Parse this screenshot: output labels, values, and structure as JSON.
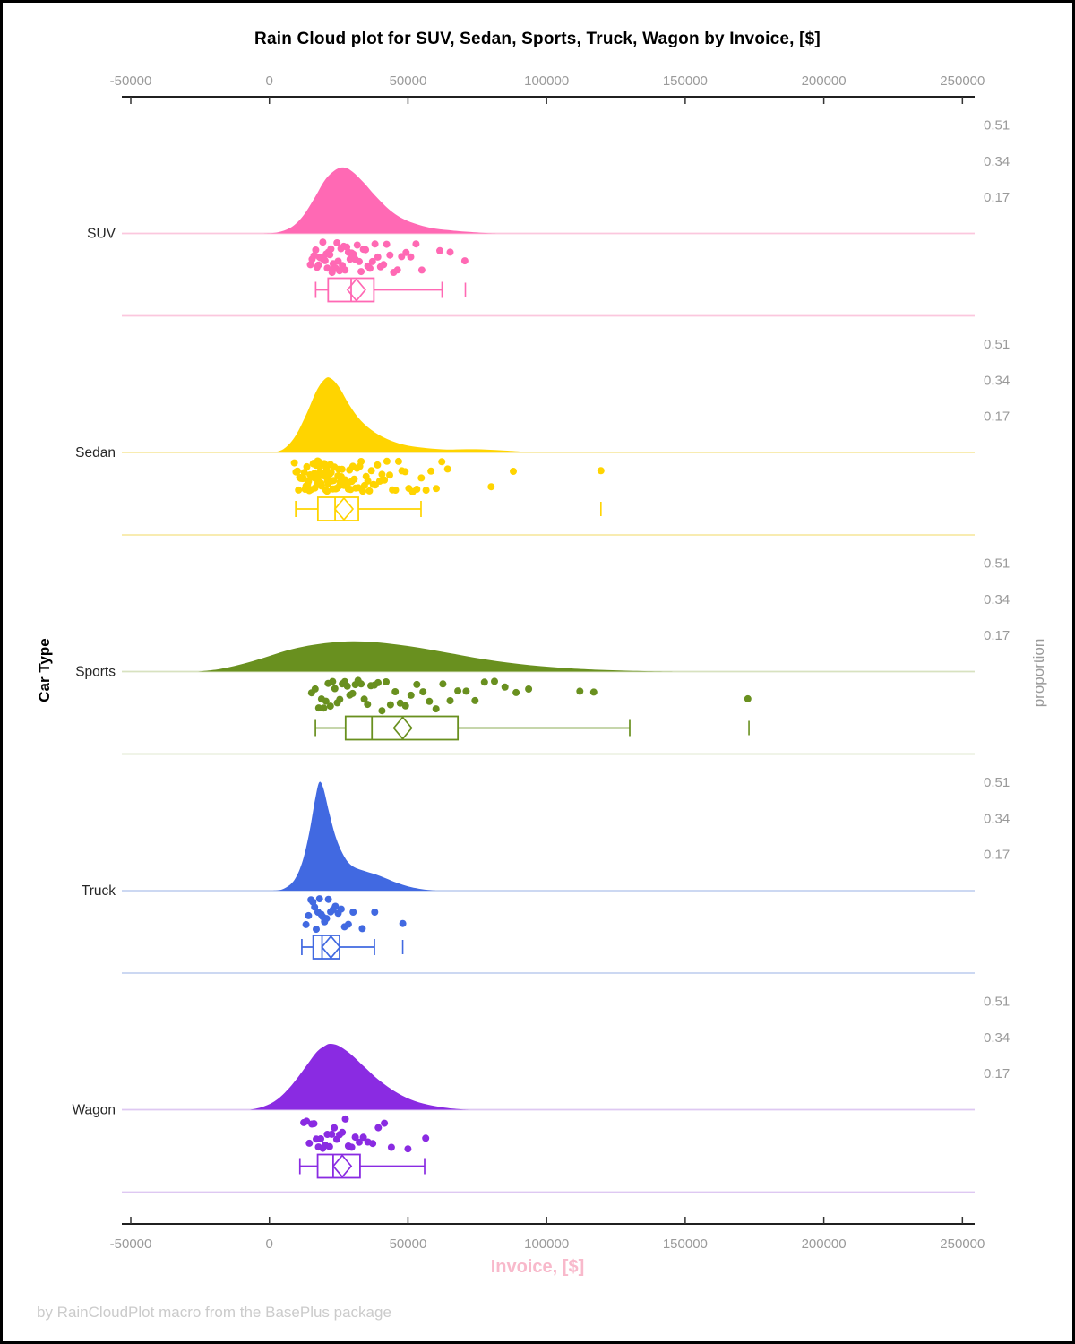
{
  "chart_data": {
    "type": "raincloud",
    "title": "Rain Cloud plot for SUV, Sedan, Sports, Truck, Wagon by Invoice, [$]",
    "xlabel": "Invoice, [$]",
    "xlabel_color": "#F8B9CB",
    "ylabel_left": "Car Type",
    "ylabel_right": "proportion",
    "footer": "by RainCloudPlot macro from the BasePlus package",
    "axis_color": "#000000",
    "tick_color": "#333333",
    "tick_label_color": "#9a9a9a",
    "category_label_color": "#262626",
    "x_range": [
      -50000,
      250000
    ],
    "x_ticks": [
      -50000,
      0,
      50000,
      100000,
      150000,
      200000,
      250000
    ],
    "x_tick_labels": [
      "-50000",
      "0",
      "50000",
      "100000",
      "150000",
      "200000",
      "250000"
    ],
    "proportion_ticks": [
      "0.51",
      "0.34",
      "0.17"
    ],
    "legend": "none",
    "grid": "off",
    "series": [
      {
        "name": "SUV",
        "color": "#FF69B4",
        "light": "#FBC7DE",
        "density": [
          [
            -2000,
            0
          ],
          [
            3000,
            0.005
          ],
          [
            8000,
            0.03
          ],
          [
            12000,
            0.08
          ],
          [
            16000,
            0.16
          ],
          [
            20000,
            0.25
          ],
          [
            24000,
            0.3
          ],
          [
            27000,
            0.31
          ],
          [
            30000,
            0.29
          ],
          [
            34000,
            0.24
          ],
          [
            38000,
            0.18
          ],
          [
            43000,
            0.115
          ],
          [
            48000,
            0.07
          ],
          [
            54000,
            0.04
          ],
          [
            60000,
            0.022
          ],
          [
            66000,
            0.014
          ],
          [
            72000,
            0.007
          ],
          [
            78000,
            0.002
          ],
          [
            82000,
            0
          ]
        ],
        "points": [
          14800,
          15400,
          16100,
          16700,
          17200,
          17700,
          18100,
          18500,
          18900,
          19300,
          19700,
          20100,
          20500,
          20900,
          21300,
          21800,
          22200,
          22600,
          23000,
          23500,
          23900,
          24400,
          24800,
          25300,
          25800,
          26300,
          26800,
          27300,
          27900,
          28500,
          29100,
          29700,
          30300,
          31000,
          31700,
          32400,
          33100,
          33900,
          34700,
          35500,
          36300,
          37200,
          38100,
          39100,
          40100,
          41200,
          42300,
          43500,
          44800,
          46200,
          47700,
          49300,
          51000,
          52900,
          55000,
          61500,
          65200,
          70500
        ],
        "box": {
          "whisker_low": 16700,
          "q1": 21200,
          "median": 29500,
          "q3": 37700,
          "mean": 31400,
          "whisker_high": 62300,
          "outliers": [
            70700
          ]
        }
      },
      {
        "name": "Sedan",
        "color": "#FFD400",
        "light": "#F7E9A6",
        "density": [
          [
            1000,
            0
          ],
          [
            5000,
            0.015
          ],
          [
            9000,
            0.07
          ],
          [
            13000,
            0.17
          ],
          [
            17000,
            0.29
          ],
          [
            20000,
            0.345
          ],
          [
            22000,
            0.35
          ],
          [
            25000,
            0.31
          ],
          [
            29000,
            0.22
          ],
          [
            33000,
            0.15
          ],
          [
            38000,
            0.095
          ],
          [
            44000,
            0.055
          ],
          [
            50000,
            0.032
          ],
          [
            57000,
            0.02
          ],
          [
            64000,
            0.014
          ],
          [
            71000,
            0.015
          ],
          [
            78000,
            0.014
          ],
          [
            85000,
            0.009
          ],
          [
            92000,
            0.003
          ],
          [
            96000,
            0
          ]
        ],
        "points": [
          9000,
          9600,
          10100,
          10500,
          10900,
          11300,
          11700,
          12000,
          12300,
          12600,
          12900,
          13200,
          13500,
          13800,
          14100,
          14400,
          14700,
          15000,
          15200,
          15400,
          15600,
          15800,
          16000,
          16200,
          16400,
          16600,
          16800,
          17000,
          17200,
          17400,
          17600,
          17800,
          18000,
          18200,
          18400,
          18600,
          18800,
          19000,
          19200,
          19400,
          19600,
          19800,
          20000,
          20200,
          20400,
          20600,
          20800,
          21000,
          21200,
          21400,
          21600,
          21800,
          22000,
          22300,
          22600,
          22900,
          23200,
          23500,
          23800,
          24100,
          24400,
          24700,
          25000,
          25300,
          25600,
          25900,
          26200,
          26500,
          26900,
          27300,
          27700,
          28100,
          28500,
          28900,
          29300,
          29700,
          30100,
          30600,
          31100,
          31600,
          32100,
          32600,
          33100,
          33700,
          34300,
          34900,
          35500,
          36100,
          36800,
          37500,
          38200,
          39000,
          39800,
          40600,
          41500,
          42400,
          43400,
          44400,
          45500,
          46600,
          47800,
          49000,
          50300,
          51700,
          53200,
          54800,
          56500,
          58300,
          60200,
          62200,
          64300,
          80000,
          88000,
          119600
        ],
        "box": {
          "whisker_low": 9500,
          "q1": 17500,
          "median": 23700,
          "q3": 32100,
          "mean": 26900,
          "whisker_high": 54700,
          "outliers": [
            119600
          ]
        }
      },
      {
        "name": "Sports",
        "color": "#69901F",
        "light": "#D8E2C0",
        "density": [
          [
            -26000,
            0
          ],
          [
            -18000,
            0.012
          ],
          [
            -10000,
            0.035
          ],
          [
            -2000,
            0.065
          ],
          [
            6000,
            0.098
          ],
          [
            14000,
            0.122
          ],
          [
            22000,
            0.136
          ],
          [
            30000,
            0.142
          ],
          [
            38000,
            0.138
          ],
          [
            46000,
            0.127
          ],
          [
            54000,
            0.112
          ],
          [
            62000,
            0.094
          ],
          [
            70000,
            0.075
          ],
          [
            78000,
            0.057
          ],
          [
            86000,
            0.042
          ],
          [
            94000,
            0.03
          ],
          [
            102000,
            0.021
          ],
          [
            110000,
            0.014
          ],
          [
            120000,
            0.008
          ],
          [
            130000,
            0.004
          ],
          [
            140000,
            0.001
          ],
          [
            146000,
            0
          ]
        ],
        "points": [
          15200,
          16500,
          17800,
          18800,
          19600,
          20400,
          21200,
          22000,
          22800,
          23600,
          24500,
          25400,
          26300,
          27200,
          28100,
          29000,
          30000,
          31000,
          32000,
          33100,
          34200,
          35400,
          36600,
          37900,
          39200,
          40600,
          42100,
          43700,
          45400,
          47200,
          49100,
          51100,
          53200,
          55400,
          57700,
          60100,
          62600,
          65200,
          68000,
          71000,
          74200,
          77600,
          81200,
          85000,
          89000,
          93500,
          112000,
          117000,
          172600
        ],
        "box": {
          "whisker_low": 16600,
          "q1": 27500,
          "median": 37000,
          "q3": 68000,
          "mean": 48100,
          "whisker_high": 130000,
          "outliers": [
            173000
          ]
        }
      },
      {
        "name": "Truck",
        "color": "#4169E1",
        "light": "#C5D3F1",
        "density": [
          [
            1000,
            0
          ],
          [
            5000,
            0.008
          ],
          [
            9000,
            0.05
          ],
          [
            12000,
            0.14
          ],
          [
            14500,
            0.28
          ],
          [
            16500,
            0.43
          ],
          [
            18000,
            0.51
          ],
          [
            19500,
            0.48
          ],
          [
            21500,
            0.37
          ],
          [
            24000,
            0.25
          ],
          [
            27000,
            0.16
          ],
          [
            30000,
            0.115
          ],
          [
            34000,
            0.094
          ],
          [
            38000,
            0.078
          ],
          [
            42000,
            0.058
          ],
          [
            46000,
            0.037
          ],
          [
            50000,
            0.02
          ],
          [
            54000,
            0.009
          ],
          [
            58000,
            0.002
          ],
          [
            60000,
            0
          ]
        ],
        "points": [
          13200,
          14100,
          15000,
          15700,
          16300,
          16900,
          17500,
          18100,
          18700,
          19300,
          19900,
          20600,
          21300,
          22100,
          22900,
          23800,
          24800,
          25900,
          27100,
          28500,
          30200,
          33500,
          38000,
          48100
        ],
        "box": {
          "whisker_low": 11700,
          "q1": 15800,
          "median": 19000,
          "q3": 25300,
          "mean": 22200,
          "whisker_high": 37900,
          "outliers": [
            48100
          ]
        }
      },
      {
        "name": "Wagon",
        "color": "#8A2BE2",
        "light": "#DEC8F2",
        "density": [
          [
            -7000,
            0
          ],
          [
            -2000,
            0.015
          ],
          [
            3000,
            0.05
          ],
          [
            8000,
            0.115
          ],
          [
            13000,
            0.2
          ],
          [
            17000,
            0.27
          ],
          [
            20000,
            0.3
          ],
          [
            22000,
            0.31
          ],
          [
            25000,
            0.3
          ],
          [
            29000,
            0.265
          ],
          [
            34000,
            0.205
          ],
          [
            39000,
            0.145
          ],
          [
            45000,
            0.088
          ],
          [
            51000,
            0.048
          ],
          [
            57000,
            0.024
          ],
          [
            63000,
            0.01
          ],
          [
            69000,
            0.002
          ],
          [
            72000,
            0
          ]
        ],
        "points": [
          12400,
          13400,
          14400,
          15300,
          16100,
          16900,
          17700,
          18500,
          19300,
          20100,
          20900,
          21700,
          22500,
          23400,
          24300,
          25300,
          26300,
          27400,
          28500,
          29700,
          31000,
          32400,
          33900,
          35500,
          37300,
          39300,
          41500,
          44000,
          50000,
          56400
        ],
        "box": {
          "whisker_low": 11000,
          "q1": 17400,
          "median": 23000,
          "q3": 32700,
          "mean": 26300,
          "whisker_high": 56000,
          "outliers": []
        }
      }
    ]
  }
}
